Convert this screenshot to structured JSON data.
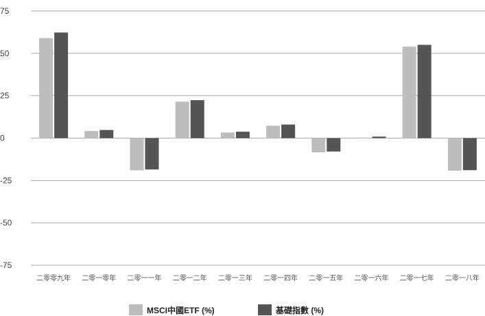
{
  "chart_data": {
    "type": "bar",
    "categories": [
      "二零零九年",
      "二零一零年",
      "二零一一年",
      "二零一二年",
      "二零一三年",
      "二零一四年",
      "二零一五年",
      "二零一六年",
      "二零一七年",
      "二零一八年"
    ],
    "series": [
      {
        "name": "MSCI中國ETF (%)",
        "color": "#bdbdbd",
        "values": [
          59.0,
          4.2,
          -19.0,
          21.5,
          3.3,
          7.3,
          -8.4,
          0.3,
          54.0,
          -19.2
        ]
      },
      {
        "name": "基礎指數 (%)",
        "color": "#555555",
        "values": [
          62.3,
          4.8,
          -18.5,
          22.4,
          3.8,
          8.0,
          -7.9,
          0.9,
          55.0,
          -18.9
        ]
      }
    ],
    "ylim": [
      -75,
      75
    ],
    "yticks": [
      75,
      50,
      25,
      0,
      -25,
      -50,
      -75
    ],
    "ytick_labels": [
      "75",
      "50",
      "25",
      "0",
      "-25",
      "-50",
      "-75"
    ],
    "grid": true,
    "legend_position": "bottom-center"
  }
}
